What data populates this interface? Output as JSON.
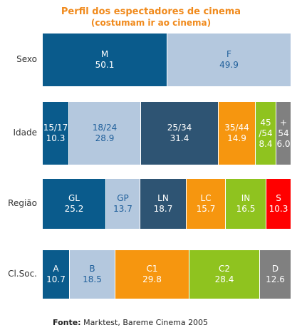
{
  "title": "Perfil dos espectadores de cinema",
  "subtitle": "(costumam ir ao cinema)",
  "source": {
    "prefix": "Fonte:",
    "text": "Marktest, Bareme Cinema 2005"
  },
  "chart_data": {
    "type": "bar",
    "stacked": true,
    "orientation": "horizontal",
    "title": "Perfil dos espectadores de cinema",
    "subtitle": "(costumam ir ao cinema)",
    "rows": [
      {
        "label": "Sexo",
        "segments": [
          {
            "name": "M",
            "value": 50.1,
            "value_text": "50.1",
            "color": "#0a5b8c",
            "text_color": "#ffffff"
          },
          {
            "name": "F",
            "value": 49.9,
            "value_text": "49.9",
            "color": "#b4c8de",
            "text_color": "#1f5f9a"
          }
        ]
      },
      {
        "label": "Idade",
        "segments": [
          {
            "name": "15/17",
            "value": 10.3,
            "value_text": "10.3",
            "color": "#0a5b8c",
            "text_color": "#ffffff"
          },
          {
            "name": "18/24",
            "value": 28.9,
            "value_text": "28.9",
            "color": "#b4c8de",
            "text_color": "#1f5f9a"
          },
          {
            "name": "25/34",
            "value": 31.4,
            "value_text": "31.4",
            "color": "#2e5473",
            "text_color": "#ffffff"
          },
          {
            "name": "35/44",
            "value": 14.9,
            "value_text": "14.9",
            "color": "#f6960f",
            "text_color": "#ffffff"
          },
          {
            "name": "45 /54",
            "value": 8.4,
            "value_text": "8.4",
            "color": "#8fc31f",
            "text_color": "#ffffff"
          },
          {
            "name": "+ 54",
            "value": 6.0,
            "value_text": "6.0",
            "color": "#808080",
            "text_color": "#ffffff"
          }
        ]
      },
      {
        "label": "Região",
        "segments": [
          {
            "name": "GL",
            "value": 25.2,
            "value_text": "25.2",
            "color": "#0a5b8c",
            "text_color": "#ffffff"
          },
          {
            "name": "GP",
            "value": 13.7,
            "value_text": "13.7",
            "color": "#b4c8de",
            "text_color": "#1f5f9a"
          },
          {
            "name": "LN",
            "value": 18.7,
            "value_text": "18.7",
            "color": "#2e5473",
            "text_color": "#ffffff"
          },
          {
            "name": "LC",
            "value": 15.7,
            "value_text": "15.7",
            "color": "#f6960f",
            "text_color": "#ffffff"
          },
          {
            "name": "IN",
            "value": 16.5,
            "value_text": "16.5",
            "color": "#8fc31f",
            "text_color": "#ffffff"
          },
          {
            "name": "S",
            "value": 10.3,
            "value_text": "10.3",
            "color": "#ff0000",
            "text_color": "#ffffff"
          }
        ]
      },
      {
        "label": "Cl.Soc.",
        "segments": [
          {
            "name": "A",
            "value": 10.7,
            "value_text": "10.7",
            "color": "#0a5b8c",
            "text_color": "#ffffff"
          },
          {
            "name": "B",
            "value": 18.5,
            "value_text": "18.5",
            "color": "#b4c8de",
            "text_color": "#1f5f9a"
          },
          {
            "name": "C1",
            "value": 29.8,
            "value_text": "29.8",
            "color": "#f6960f",
            "text_color": "#ffffff"
          },
          {
            "name": "C2",
            "value": 28.4,
            "value_text": "28.4",
            "color": "#8fc31f",
            "text_color": "#ffffff"
          },
          {
            "name": "D",
            "value": 12.6,
            "value_text": "12.6",
            "color": "#808080",
            "text_color": "#ffffff"
          }
        ]
      }
    ]
  }
}
